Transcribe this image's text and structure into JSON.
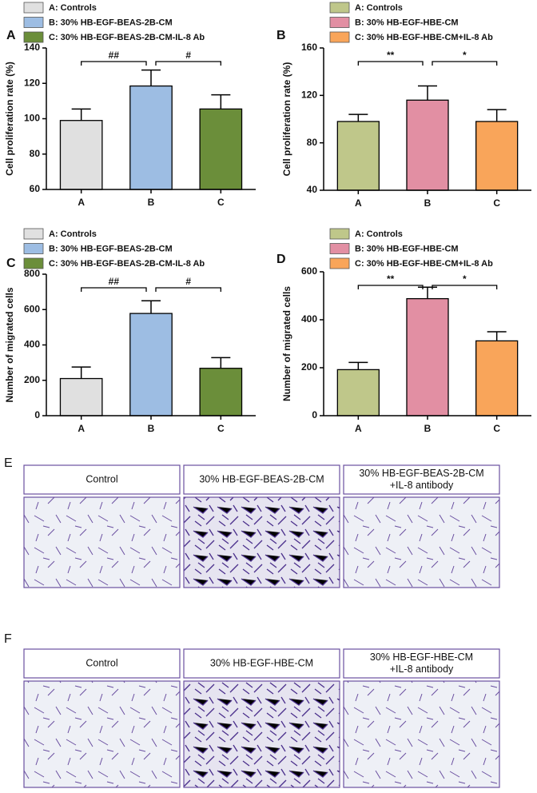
{
  "chart_data": [
    {
      "type": "bar",
      "panel": "A",
      "ylabel": "Cell proliferation rate (%)",
      "categories": [
        "A",
        "B",
        "C"
      ],
      "legend": [
        "A: Controls",
        "B: 30% HB-EGF-BEAS-2B-CM",
        "C: 30% HB-EGF-BEAS-2B-CM-IL-8 Ab"
      ],
      "colors": [
        "#e0e0e0",
        "#9dbde3",
        "#6b8e3a"
      ],
      "values": [
        99,
        118.5,
        105.5
      ],
      "errors": [
        6.5,
        9,
        8
      ],
      "ylim": [
        60,
        140
      ],
      "yticks": [
        60,
        80,
        100,
        120,
        140
      ],
      "annotations": [
        {
          "text": "##",
          "from": "A",
          "to": "B"
        },
        {
          "text": "#",
          "from": "B",
          "to": "C"
        }
      ]
    },
    {
      "type": "bar",
      "panel": "B",
      "ylabel": "Cell proliferation rate (%)",
      "categories": [
        "A",
        "B",
        "C"
      ],
      "legend": [
        "A: Controls",
        "B: 30% HB-EGF-HBE-CM",
        "C: 30% HB-EGF-HBE-CM+IL-8 Ab"
      ],
      "colors": [
        "#bfc78a",
        "#e28fa3",
        "#f9a55a"
      ],
      "values": [
        98,
        116,
        98
      ],
      "errors": [
        6,
        12,
        10
      ],
      "ylim": [
        40,
        160
      ],
      "yticks": [
        40,
        80,
        120,
        160
      ],
      "annotations": [
        {
          "text": "**",
          "from": "A",
          "to": "B"
        },
        {
          "text": "*",
          "from": "B",
          "to": "C"
        }
      ]
    },
    {
      "type": "bar",
      "panel": "C",
      "ylabel": "Number of migrated cells",
      "categories": [
        "A",
        "B",
        "C"
      ],
      "legend": [
        "A: Controls",
        "B: 30% HB-EGF-BEAS-2B-CM",
        "C: 30% HB-EGF-BEAS-2B-CM-IL-8 Ab"
      ],
      "colors": [
        "#e0e0e0",
        "#9dbde3",
        "#6b8e3a"
      ],
      "values": [
        210,
        578,
        268
      ],
      "errors": [
        65,
        72,
        60
      ],
      "ylim": [
        0,
        800
      ],
      "yticks": [
        0,
        200,
        400,
        600,
        800
      ],
      "annotations": [
        {
          "text": "##",
          "from": "A",
          "to": "B"
        },
        {
          "text": "#",
          "from": "B",
          "to": "C"
        }
      ]
    },
    {
      "type": "bar",
      "panel": "D",
      "ylabel": "Number of migrated cells",
      "categories": [
        "A",
        "B",
        "C"
      ],
      "legend": [
        "A: Controls",
        "B: 30% HB-EGF-HBE-CM",
        "C: 30% HB-EGF-HBE-CM+IL-8 Ab"
      ],
      "colors": [
        "#bfc78a",
        "#e28fa3",
        "#f9a55a"
      ],
      "values": [
        192,
        488,
        312
      ],
      "errors": [
        30,
        48,
        38
      ],
      "ylim": [
        0,
        600
      ],
      "yticks": [
        0,
        200,
        400,
        600
      ],
      "annotations": [
        {
          "text": "**",
          "from": "A",
          "to": "B"
        },
        {
          "text": "*",
          "from": "B",
          "to": "C"
        }
      ]
    }
  ],
  "panels": [
    {
      "label": "E",
      "captions": [
        [
          "Control"
        ],
        [
          "30% HB-EGF-BEAS-2B-CM"
        ],
        [
          "30% HB-EGF-BEAS-2B-CM",
          "+IL-8 antibody"
        ]
      ]
    },
    {
      "label": "F",
      "captions": [
        [
          "Control"
        ],
        [
          "30% HB-EGF-HBE-CM"
        ],
        [
          "30% HB-EGF-HBE-CM",
          "+IL-8 antibody"
        ]
      ]
    }
  ]
}
